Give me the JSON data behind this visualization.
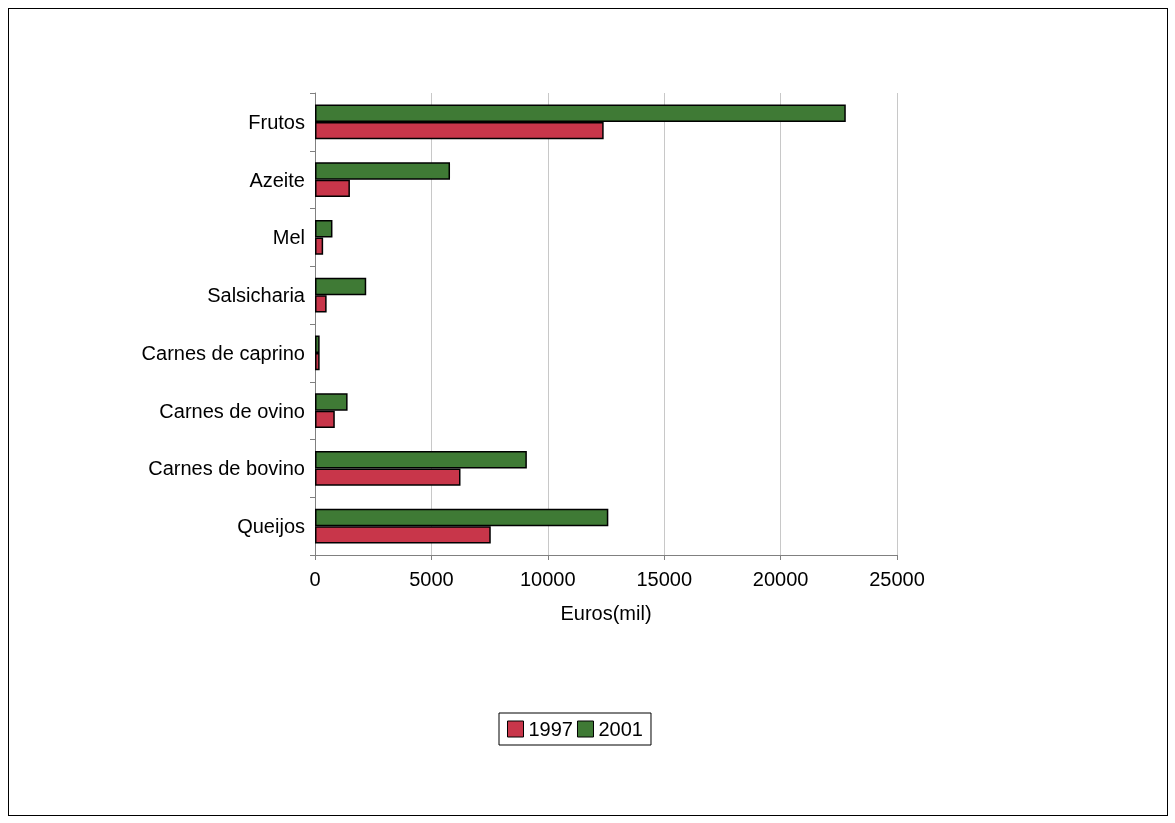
{
  "chart_data": {
    "type": "bar",
    "orientation": "horizontal",
    "xlabel": "Euros(mil)",
    "categories": [
      "Frutos",
      "Azeite",
      "Mel",
      "Salsicharia",
      "Carnes de caprino",
      "Carnes de ovino",
      "Carnes de bovino",
      "Queijos"
    ],
    "series": [
      {
        "name": "1997",
        "color": "#c8364a",
        "values": [
          12400,
          1500,
          350,
          500,
          200,
          850,
          6250,
          7550
        ]
      },
      {
        "name": "2001",
        "color": "#3f7a35",
        "values": [
          22800,
          5800,
          750,
          2200,
          200,
          1400,
          9100,
          12600
        ]
      }
    ],
    "xlim": [
      0,
      25000
    ],
    "xticks": [
      0,
      5000,
      10000,
      15000,
      20000,
      25000
    ],
    "grid": "x",
    "legend": "bottom"
  }
}
